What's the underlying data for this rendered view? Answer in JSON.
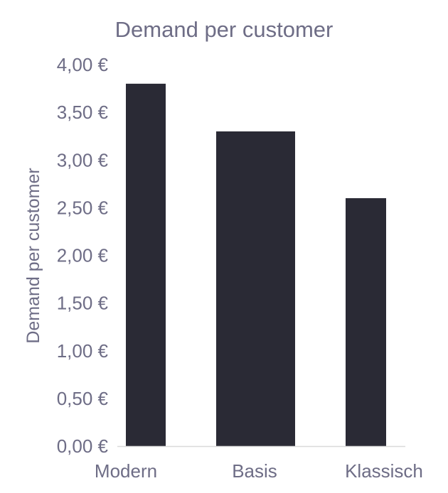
{
  "chart_data": {
    "type": "bar",
    "title": "Demand per customer",
    "ylabel": "Demand per customer",
    "xlabel": "",
    "categories": [
      "Modern",
      "Basis",
      "Klassisch"
    ],
    "values": [
      3.8,
      3.3,
      2.6
    ],
    "ylim": [
      0,
      4
    ],
    "y_ticks": [
      0,
      0.5,
      1,
      1.5,
      2,
      2.5,
      3,
      3.5,
      4
    ],
    "y_tick_labels": [
      "0,00 €",
      "0,50 €",
      "1,00 €",
      "1,50 €",
      "2,00 €",
      "2,50 €",
      "3,00 €",
      "3,50 €",
      "4,00 €"
    ],
    "grid": false,
    "legend": "none",
    "colors": {
      "bar": "#2a2a35",
      "text": "#6e6d86",
      "axis": "#d9d9d9"
    }
  }
}
